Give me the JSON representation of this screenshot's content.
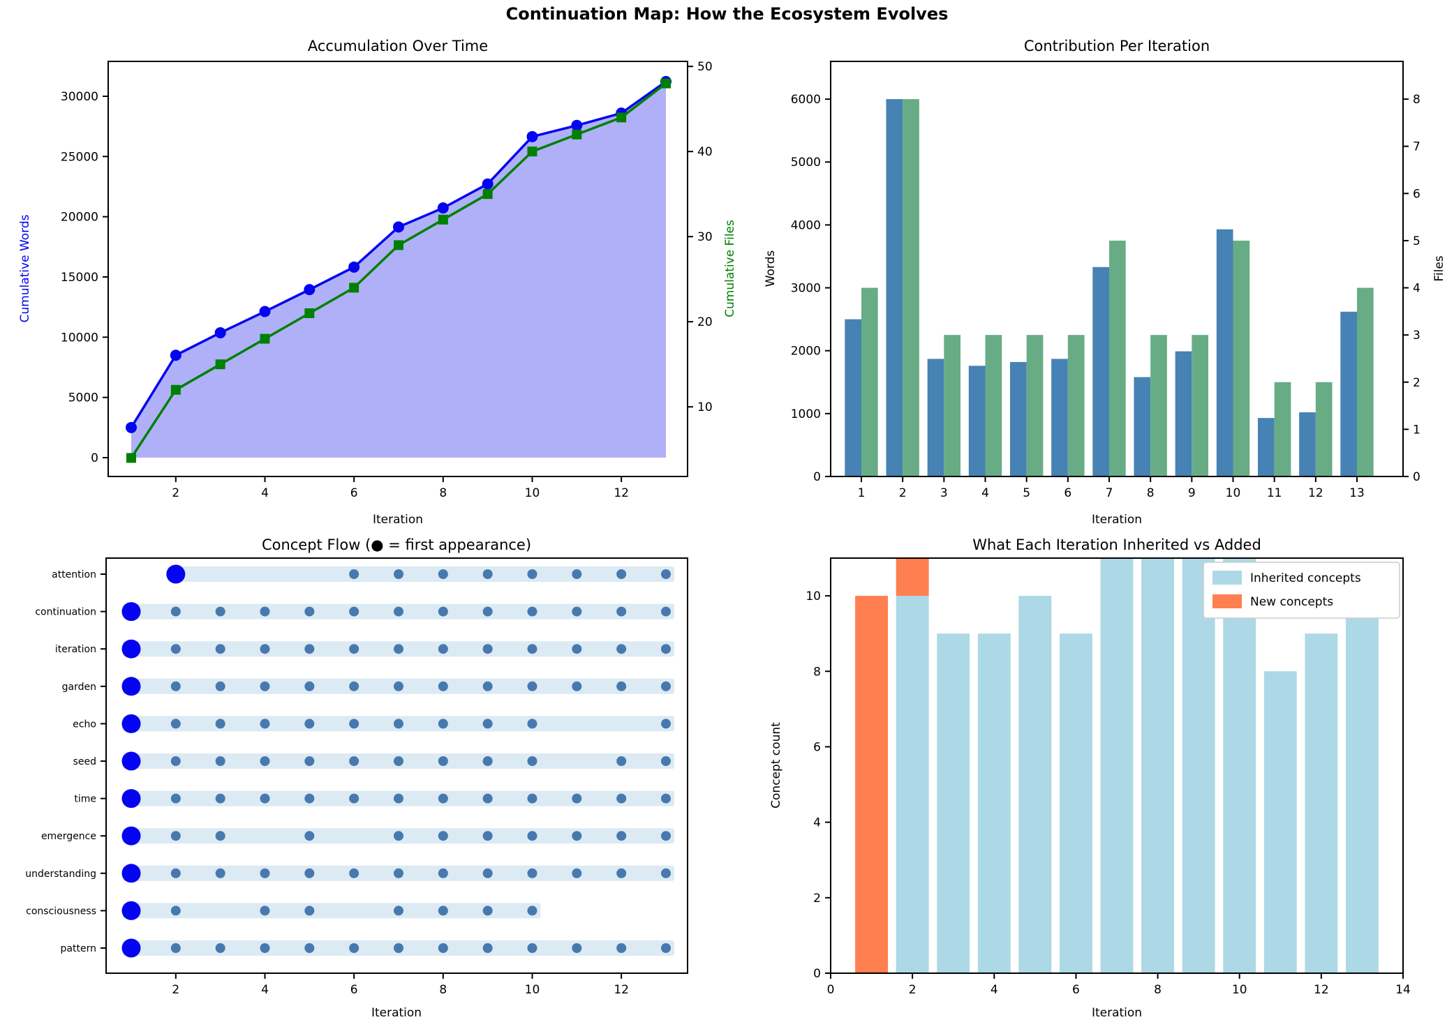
{
  "figure_title": "Continuation Map: How the Ecosystem Evolves",
  "colors": {
    "words_line": "#0404f0",
    "words_fill": "#b0b0f8",
    "files_line": "#008000",
    "bar_words": "#4682b4",
    "bar_files": "#68ac85",
    "first_dot": "#0404f0",
    "flow_dot": "#4779ae",
    "flow_band": "#dceaf3",
    "inherited": "#add8e6",
    "new": "#ff7f50",
    "ylabel_words_color": "#0000f0",
    "ylabel_files_color": "#008000"
  },
  "chart_data": [
    {
      "type": "line",
      "title": "Accumulation Over Time",
      "xlabel": "Iteration",
      "ylabel_left": "Cumulative Words",
      "ylabel_right": "Cumulative Files",
      "x": [
        1,
        2,
        3,
        4,
        5,
        6,
        7,
        8,
        9,
        10,
        11,
        12,
        13
      ],
      "series": [
        {
          "name": "Cumulative Words",
          "axis": "left",
          "marker": "circle",
          "values": [
            2500,
            8500,
            10370,
            12130,
            13950,
            15820,
            19150,
            20730,
            22720,
            26650,
            27580,
            28600,
            31220
          ]
        },
        {
          "name": "Cumulative Files",
          "axis": "right",
          "marker": "square",
          "values": [
            4,
            12,
            15,
            18,
            21,
            24,
            29,
            32,
            35,
            40,
            42,
            44,
            48
          ]
        }
      ],
      "xticks": [
        2,
        4,
        6,
        8,
        10,
        12
      ],
      "yticks_left": [
        0,
        5000,
        10000,
        15000,
        20000,
        25000,
        30000
      ],
      "yticks_right": [
        10,
        20,
        30,
        40,
        50
      ],
      "area_fill": true,
      "grid": false
    },
    {
      "type": "bar",
      "title": "Contribution Per Iteration",
      "xlabel": "Iteration",
      "ylabel_left": "Words",
      "ylabel_right": "Files",
      "categories": [
        1,
        2,
        3,
        4,
        5,
        6,
        7,
        8,
        9,
        10,
        11,
        12,
        13
      ],
      "series": [
        {
          "name": "Words",
          "axis": "left",
          "values": [
            2500,
            6000,
            1870,
            1760,
            1820,
            1870,
            3330,
            1580,
            1990,
            3930,
            930,
            1020,
            2620
          ]
        },
        {
          "name": "Files",
          "axis": "right",
          "values": [
            4,
            8,
            3,
            3,
            3,
            3,
            5,
            3,
            3,
            5,
            2,
            2,
            4
          ]
        }
      ],
      "xticks": [
        1,
        2,
        3,
        4,
        5,
        6,
        7,
        8,
        9,
        10,
        11,
        12,
        13
      ],
      "yticks_left": [
        0,
        1000,
        2000,
        3000,
        4000,
        5000,
        6000
      ],
      "yticks_right": [
        0,
        1,
        2,
        3,
        4,
        5,
        6,
        7,
        8
      ],
      "ylim_left": [
        0,
        6600
      ],
      "ylim_right": [
        0,
        8.8
      ],
      "grid": false
    },
    {
      "type": "scatter",
      "title": "Concept Flow (● = first appearance)",
      "xlabel": "Iteration",
      "xticks": [
        2,
        4,
        6,
        8,
        10,
        12
      ],
      "legend_note": "large dot = first appearance",
      "concepts": [
        {
          "name": "attention",
          "first": 2,
          "band_end": 13,
          "dots": [
            6,
            7,
            8,
            9,
            10,
            11,
            12,
            13
          ]
        },
        {
          "name": "continuation",
          "first": 1,
          "band_end": 13,
          "dots": [
            2,
            3,
            4,
            5,
            6,
            7,
            8,
            9,
            10,
            11,
            12,
            13
          ]
        },
        {
          "name": "iteration",
          "first": 1,
          "band_end": 13,
          "dots": [
            2,
            3,
            4,
            5,
            6,
            7,
            8,
            9,
            10,
            11,
            12,
            13
          ]
        },
        {
          "name": "garden",
          "first": 1,
          "band_end": 13,
          "dots": [
            2,
            3,
            4,
            5,
            6,
            7,
            8,
            9,
            10,
            11,
            12,
            13
          ]
        },
        {
          "name": "echo",
          "first": 1,
          "band_end": 13,
          "dots": [
            2,
            3,
            4,
            5,
            6,
            7,
            8,
            9,
            10,
            13
          ]
        },
        {
          "name": "seed",
          "first": 1,
          "band_end": 13,
          "dots": [
            2,
            3,
            4,
            5,
            6,
            7,
            8,
            9,
            10,
            12,
            13
          ]
        },
        {
          "name": "time",
          "first": 1,
          "band_end": 13,
          "dots": [
            2,
            3,
            4,
            5,
            6,
            7,
            8,
            9,
            10,
            11,
            12,
            13
          ]
        },
        {
          "name": "emergence",
          "first": 1,
          "band_end": 13,
          "dots": [
            2,
            3,
            5,
            7,
            8,
            9,
            10,
            11,
            12,
            13
          ]
        },
        {
          "name": "understanding",
          "first": 1,
          "band_end": 13,
          "dots": [
            2,
            3,
            4,
            5,
            6,
            7,
            8,
            9,
            10,
            11,
            12,
            13
          ]
        },
        {
          "name": "consciousness",
          "first": 1,
          "band_end": 10,
          "dots": [
            2,
            4,
            5,
            7,
            8,
            9,
            10
          ]
        },
        {
          "name": "pattern",
          "first": 1,
          "band_end": 13,
          "dots": [
            2,
            3,
            4,
            5,
            6,
            7,
            8,
            9,
            10,
            11,
            12,
            13
          ]
        }
      ]
    },
    {
      "type": "bar",
      "title": "What Each Iteration Inherited vs Added",
      "xlabel": "Iteration",
      "ylabel": "Concept count",
      "stacked": true,
      "categories": [
        1,
        2,
        3,
        4,
        5,
        6,
        7,
        8,
        9,
        10,
        11,
        12,
        13
      ],
      "series": [
        {
          "name": "Inherited concepts",
          "values": [
            0,
            10,
            9,
            9,
            10,
            9,
            11,
            11,
            11,
            11,
            8,
            9,
            10
          ]
        },
        {
          "name": "New concepts",
          "values": [
            10,
            1,
            0,
            0,
            0,
            0,
            0,
            0,
            0,
            0,
            0,
            0,
            0
          ]
        }
      ],
      "legend": [
        "Inherited concepts",
        "New concepts"
      ],
      "legend_position": "upper right",
      "xticks": [
        0,
        2,
        4,
        6,
        8,
        10,
        12,
        14
      ],
      "yticks": [
        0,
        2,
        4,
        6,
        8,
        10
      ],
      "xlim": [
        0,
        14
      ],
      "ylim": [
        0,
        11
      ],
      "grid": false
    }
  ]
}
